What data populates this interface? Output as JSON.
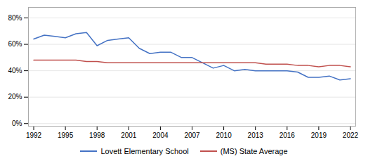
{
  "chart_data": {
    "type": "line",
    "x": [
      1992,
      1993,
      1994,
      1995,
      1996,
      1997,
      1998,
      1999,
      2000,
      2001,
      2002,
      2003,
      2004,
      2005,
      2006,
      2007,
      2008,
      2009,
      2010,
      2011,
      2012,
      2013,
      2014,
      2015,
      2016,
      2017,
      2018,
      2019,
      2020,
      2021,
      2022
    ],
    "series": [
      {
        "name": "Lovett Elementary School",
        "color": "#4472c4",
        "values": [
          0.64,
          0.67,
          0.66,
          0.65,
          0.68,
          0.69,
          0.59,
          0.63,
          0.64,
          0.65,
          0.57,
          0.53,
          0.54,
          0.54,
          0.5,
          0.5,
          0.46,
          0.42,
          0.44,
          0.4,
          0.41,
          0.4,
          0.4,
          0.4,
          0.4,
          0.39,
          0.35,
          0.35,
          0.36,
          0.33,
          0.34
        ]
      },
      {
        "name": "(MS) State Average",
        "color": "#c0504d",
        "values": [
          0.48,
          0.48,
          0.48,
          0.48,
          0.48,
          0.47,
          0.47,
          0.46,
          0.46,
          0.46,
          0.46,
          0.46,
          0.46,
          0.46,
          0.46,
          0.46,
          0.46,
          0.46,
          0.46,
          0.46,
          0.46,
          0.46,
          0.45,
          0.45,
          0.45,
          0.44,
          0.44,
          0.43,
          0.44,
          0.44,
          0.43
        ]
      }
    ],
    "xlim": [
      1991.5,
      2022.5
    ],
    "xticks": [
      1992,
      1995,
      1998,
      2001,
      2004,
      2007,
      2010,
      2013,
      2016,
      2019,
      2022
    ],
    "ylim": [
      -0.02,
      0.88
    ],
    "yticks": [
      {
        "value": 0.0,
        "label": "0%"
      },
      {
        "value": 0.2,
        "label": "20%"
      },
      {
        "value": 0.4,
        "label": "40%"
      },
      {
        "value": 0.6,
        "label": "60%"
      },
      {
        "value": 0.8,
        "label": "80%"
      }
    ],
    "grid": true,
    "legend": "bottom"
  }
}
